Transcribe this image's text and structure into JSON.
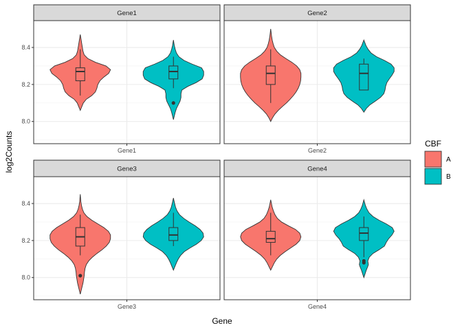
{
  "chart_data": {
    "type": "violin",
    "xlabel": "Gene",
    "ylabel": "log2Counts",
    "ylim": [
      7.88,
      8.545
    ],
    "y_ticks": [
      8.0,
      8.2,
      8.4
    ],
    "y_tick_labels": [
      "8.0",
      "8.2",
      "8.4"
    ],
    "grid": true,
    "facets": "2x2",
    "legend": {
      "title": "CBF",
      "placement": "right",
      "entries": [
        {
          "label": "A",
          "color": "#F8766D"
        },
        {
          "label": "B",
          "color": "#00BFC4"
        }
      ]
    },
    "panels": [
      {
        "strip": "Gene1",
        "x_tick_label": "Gene1",
        "groups": [
          {
            "name": "A",
            "color": "#F8766D",
            "box": {
              "whisker_low": 8.14,
              "q1": 8.22,
              "median": 8.27,
              "q3": 8.29,
              "whisker_high": 8.39
            },
            "outliers": [],
            "density": [
              [
                8.06,
                0.0
              ],
              [
                8.08,
                0.05
              ],
              [
                8.1,
                0.1
              ],
              [
                8.12,
                0.2
              ],
              [
                8.14,
                0.38
              ],
              [
                8.16,
                0.5
              ],
              [
                8.18,
                0.55
              ],
              [
                8.2,
                0.58
              ],
              [
                8.22,
                0.65
              ],
              [
                8.24,
                0.78
              ],
              [
                8.26,
                0.94
              ],
              [
                8.28,
                1.0
              ],
              [
                8.3,
                0.85
              ],
              [
                8.32,
                0.5
              ],
              [
                8.34,
                0.25
              ],
              [
                8.36,
                0.13
              ],
              [
                8.38,
                0.09
              ],
              [
                8.4,
                0.07
              ],
              [
                8.42,
                0.05
              ],
              [
                8.44,
                0.03
              ],
              [
                8.47,
                0.0
              ]
            ]
          },
          {
            "name": "B",
            "color": "#00BFC4",
            "box": {
              "whisker_low": 8.18,
              "q1": 8.23,
              "median": 8.27,
              "q3": 8.3,
              "whisker_high": 8.35
            },
            "outliers": [
              8.1
            ],
            "density": [
              [
                8.01,
                0.0
              ],
              [
                8.03,
                0.03
              ],
              [
                8.05,
                0.06
              ],
              [
                8.07,
                0.1
              ],
              [
                8.09,
                0.16
              ],
              [
                8.11,
                0.22
              ],
              [
                8.13,
                0.25
              ],
              [
                8.15,
                0.25
              ],
              [
                8.17,
                0.28
              ],
              [
                8.19,
                0.48
              ],
              [
                8.21,
                0.75
              ],
              [
                8.23,
                0.95
              ],
              [
                8.25,
                1.0
              ],
              [
                8.27,
                1.0
              ],
              [
                8.29,
                0.93
              ],
              [
                8.31,
                0.62
              ],
              [
                8.33,
                0.35
              ],
              [
                8.35,
                0.18
              ],
              [
                8.37,
                0.1
              ],
              [
                8.39,
                0.06
              ],
              [
                8.41,
                0.03
              ],
              [
                8.44,
                0.0
              ]
            ]
          }
        ]
      },
      {
        "strip": "Gene2",
        "x_tick_label": "Gene2",
        "groups": [
          {
            "name": "A",
            "color": "#F8766D",
            "box": {
              "whisker_low": 8.1,
              "q1": 8.2,
              "median": 8.26,
              "q3": 8.3,
              "whisker_high": 8.39
            },
            "outliers": [],
            "density": [
              [
                8.0,
                0.0
              ],
              [
                8.02,
                0.06
              ],
              [
                8.04,
                0.14
              ],
              [
                8.06,
                0.25
              ],
              [
                8.08,
                0.38
              ],
              [
                8.1,
                0.52
              ],
              [
                8.12,
                0.64
              ],
              [
                8.14,
                0.75
              ],
              [
                8.16,
                0.84
              ],
              [
                8.18,
                0.91
              ],
              [
                8.2,
                0.96
              ],
              [
                8.22,
                0.99
              ],
              [
                8.24,
                1.0
              ],
              [
                8.26,
                1.0
              ],
              [
                8.28,
                0.96
              ],
              [
                8.3,
                0.86
              ],
              [
                8.32,
                0.7
              ],
              [
                8.34,
                0.5
              ],
              [
                8.36,
                0.32
              ],
              [
                8.38,
                0.2
              ],
              [
                8.4,
                0.12
              ],
              [
                8.42,
                0.08
              ],
              [
                8.44,
                0.05
              ],
              [
                8.46,
                0.03
              ],
              [
                8.5,
                0.0
              ]
            ]
          },
          {
            "name": "B",
            "color": "#00BFC4",
            "box": {
              "whisker_low": 8.17,
              "q1": 8.17,
              "median": 8.26,
              "q3": 8.31,
              "whisker_high": 8.34
            },
            "outliers": [],
            "density": [
              [
                8.05,
                0.0
              ],
              [
                8.07,
                0.08
              ],
              [
                8.09,
                0.2
              ],
              [
                8.11,
                0.38
              ],
              [
                8.13,
                0.55
              ],
              [
                8.15,
                0.66
              ],
              [
                8.17,
                0.7
              ],
              [
                8.19,
                0.72
              ],
              [
                8.21,
                0.76
              ],
              [
                8.23,
                0.84
              ],
              [
                8.25,
                0.93
              ],
              [
                8.27,
                1.0
              ],
              [
                8.29,
                1.0
              ],
              [
                8.31,
                0.9
              ],
              [
                8.33,
                0.68
              ],
              [
                8.35,
                0.42
              ],
              [
                8.37,
                0.24
              ],
              [
                8.39,
                0.14
              ],
              [
                8.41,
                0.07
              ],
              [
                8.44,
                0.0
              ]
            ]
          }
        ]
      },
      {
        "strip": "Gene3",
        "x_tick_label": "Gene3",
        "groups": [
          {
            "name": "A",
            "color": "#F8766D",
            "box": {
              "whisker_low": 8.12,
              "q1": 8.17,
              "median": 8.22,
              "q3": 8.27,
              "whisker_high": 8.34
            },
            "outliers": [
              8.01
            ],
            "density": [
              [
                7.91,
                0.0
              ],
              [
                7.93,
                0.03
              ],
              [
                7.95,
                0.06
              ],
              [
                7.97,
                0.09
              ],
              [
                7.99,
                0.11
              ],
              [
                8.01,
                0.13
              ],
              [
                8.03,
                0.14
              ],
              [
                8.05,
                0.16
              ],
              [
                8.07,
                0.2
              ],
              [
                8.09,
                0.28
              ],
              [
                8.11,
                0.4
              ],
              [
                8.13,
                0.55
              ],
              [
                8.15,
                0.72
              ],
              [
                8.17,
                0.86
              ],
              [
                8.19,
                0.96
              ],
              [
                8.21,
                1.0
              ],
              [
                8.23,
                1.0
              ],
              [
                8.25,
                0.93
              ],
              [
                8.27,
                0.78
              ],
              [
                8.29,
                0.58
              ],
              [
                8.31,
                0.38
              ],
              [
                8.33,
                0.22
              ],
              [
                8.35,
                0.12
              ],
              [
                8.37,
                0.07
              ],
              [
                8.39,
                0.04
              ],
              [
                8.41,
                0.02
              ],
              [
                8.45,
                0.0
              ]
            ]
          },
          {
            "name": "B",
            "color": "#00BFC4",
            "box": {
              "whisker_low": 8.17,
              "q1": 8.2,
              "median": 8.23,
              "q3": 8.27,
              "whisker_high": 8.35
            },
            "outliers": [],
            "density": [
              [
                8.04,
                0.0
              ],
              [
                8.06,
                0.05
              ],
              [
                8.08,
                0.1
              ],
              [
                8.1,
                0.16
              ],
              [
                8.12,
                0.24
              ],
              [
                8.14,
                0.36
              ],
              [
                8.16,
                0.55
              ],
              [
                8.18,
                0.76
              ],
              [
                8.2,
                0.92
              ],
              [
                8.22,
                1.0
              ],
              [
                8.24,
                0.98
              ],
              [
                8.26,
                0.88
              ],
              [
                8.28,
                0.72
              ],
              [
                8.3,
                0.52
              ],
              [
                8.32,
                0.34
              ],
              [
                8.34,
                0.2
              ],
              [
                8.36,
                0.12
              ],
              [
                8.38,
                0.07
              ],
              [
                8.4,
                0.04
              ],
              [
                8.43,
                0.0
              ]
            ]
          }
        ]
      },
      {
        "strip": "Gene4",
        "x_tick_label": "Gene4",
        "groups": [
          {
            "name": "A",
            "color": "#F8766D",
            "box": {
              "whisker_low": 8.12,
              "q1": 8.19,
              "median": 8.21,
              "q3": 8.25,
              "whisker_high": 8.35
            },
            "outliers": [],
            "density": [
              [
                8.04,
                0.0
              ],
              [
                8.06,
                0.06
              ],
              [
                8.08,
                0.12
              ],
              [
                8.1,
                0.2
              ],
              [
                8.12,
                0.32
              ],
              [
                8.14,
                0.48
              ],
              [
                8.16,
                0.66
              ],
              [
                8.18,
                0.84
              ],
              [
                8.2,
                0.96
              ],
              [
                8.22,
                1.0
              ],
              [
                8.24,
                0.96
              ],
              [
                8.26,
                0.82
              ],
              [
                8.28,
                0.58
              ],
              [
                8.3,
                0.36
              ],
              [
                8.32,
                0.22
              ],
              [
                8.34,
                0.14
              ],
              [
                8.36,
                0.09
              ],
              [
                8.38,
                0.05
              ],
              [
                8.42,
                0.0
              ]
            ]
          },
          {
            "name": "B",
            "color": "#00BFC4",
            "box": {
              "whisker_low": 8.11,
              "q1": 8.2,
              "median": 8.24,
              "q3": 8.27,
              "whisker_high": 8.33
            },
            "outliers": [
              8.08,
              8.09
            ],
            "density": [
              [
                8.0,
                0.0
              ],
              [
                8.02,
                0.04
              ],
              [
                8.04,
                0.08
              ],
              [
                8.06,
                0.13
              ],
              [
                8.07,
                0.15
              ],
              [
                8.09,
                0.13
              ],
              [
                8.11,
                0.18
              ],
              [
                8.13,
                0.3
              ],
              [
                8.15,
                0.5
              ],
              [
                8.17,
                0.68
              ],
              [
                8.19,
                0.74
              ],
              [
                8.21,
                0.82
              ],
              [
                8.23,
                0.93
              ],
              [
                8.25,
                1.0
              ],
              [
                8.27,
                0.94
              ],
              [
                8.29,
                0.74
              ],
              [
                8.31,
                0.5
              ],
              [
                8.33,
                0.3
              ],
              [
                8.35,
                0.17
              ],
              [
                8.37,
                0.1
              ],
              [
                8.39,
                0.05
              ],
              [
                8.42,
                0.0
              ]
            ]
          }
        ]
      }
    ]
  }
}
